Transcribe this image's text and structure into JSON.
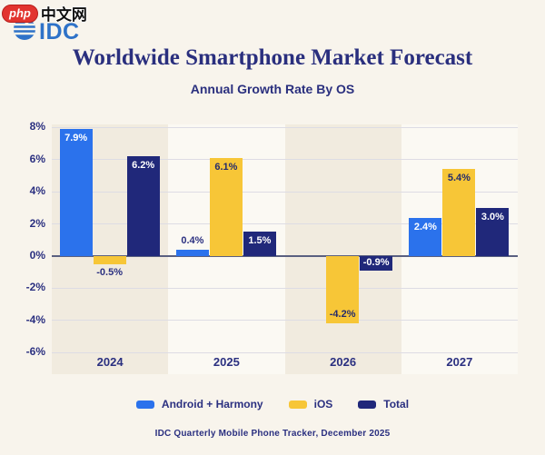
{
  "watermark": {
    "badge": "php",
    "site": "中文网"
  },
  "logo": {
    "text": "IDC"
  },
  "header": {
    "title": "Worldwide Smartphone Market Forecast",
    "subtitle": "Annual Growth Rate By OS"
  },
  "footer": {
    "source": "IDC Quarterly Mobile Phone Tracker, December 2025"
  },
  "colors": {
    "background": "#F8F4EC",
    "band_dark": "#F1EBDF",
    "band_light": "#FBF9F3",
    "android_blue": "#2B72EC",
    "ios_yellow": "#F7C637",
    "total_navy": "#20287A",
    "text_navy": "#2B3080",
    "gridline": "#DDDCE4",
    "zero_line": "#5A6080",
    "idc_blue": "#2E72C8",
    "watermark_red": "#E2342F"
  },
  "chart_data": {
    "type": "bar",
    "title": "Worldwide Smartphone Market Forecast",
    "subtitle": "Annual Growth Rate By OS",
    "categories": [
      "2024",
      "2025",
      "2026",
      "2027"
    ],
    "series": [
      {
        "name": "Android + Harmony",
        "color": "#2B72EC",
        "values": [
          7.9,
          0.4,
          null,
          2.4
        ],
        "labels": [
          "7.9%",
          "0.4%",
          "",
          "2.4%"
        ],
        "label_pos": [
          "inside-top",
          "above",
          "none",
          "inside-top"
        ],
        "label_color": [
          "#FFFFFF",
          "#2B3080",
          "",
          "#FFFFFF"
        ]
      },
      {
        "name": "iOS",
        "color": "#F7C637",
        "values": [
          -0.5,
          6.1,
          -4.2,
          5.4
        ],
        "labels": [
          "-0.5%",
          "6.1%",
          "-4.2%",
          "5.4%"
        ],
        "label_pos": [
          "below",
          "inside-top",
          "inside-bottom",
          "inside-top"
        ],
        "label_color": [
          "#2B3080",
          "#252C6B",
          "#252C6B",
          "#252C6B"
        ]
      },
      {
        "name": "Total",
        "color": "#20287A",
        "values": [
          6.2,
          1.5,
          -0.9,
          3.0
        ],
        "labels": [
          "6.2%",
          "1.5%",
          "-0.9%",
          "3.0%"
        ],
        "label_pos": [
          "inside-top",
          "inside-top",
          "inside-center",
          "inside-top"
        ],
        "label_color": [
          "#FFFFFF",
          "#FFFFFF",
          "#FFFFFF",
          "#FFFFFF"
        ]
      }
    ],
    "ylim": [
      -6,
      8
    ],
    "ytick_step": 2,
    "yticks": [
      "8%",
      "6%",
      "4%",
      "2%",
      "0%",
      "-2%",
      "-4%",
      "-6%"
    ],
    "grid": true,
    "legend_position": "bottom",
    "band_colors": [
      "#F1EBDF",
      "#FBF9F3"
    ]
  },
  "legend": {
    "items": [
      {
        "label": "Android + Harmony",
        "color": "#2B72EC"
      },
      {
        "label": "iOS",
        "color": "#F7C637"
      },
      {
        "label": "Total",
        "color": "#20287A"
      }
    ]
  }
}
